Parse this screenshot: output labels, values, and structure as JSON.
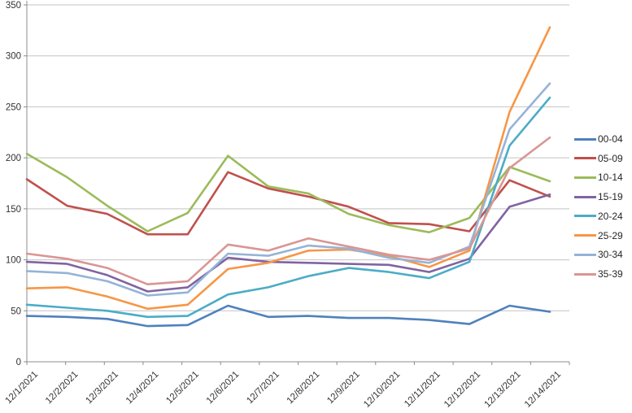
{
  "chart_data": {
    "type": "line",
    "title": "",
    "xlabel": "",
    "ylabel": "",
    "categories": [
      "12/1/2021",
      "12/2/2021",
      "12/3/2021",
      "12/4/2021",
      "12/5/2021",
      "12/6/2021",
      "12/7/2021",
      "12/8/2021",
      "12/9/2021",
      "12/10/2021",
      "12/11/2021",
      "12/12/2021",
      "12/13/2021",
      "12/14/2021"
    ],
    "series": [
      {
        "name": "00-04",
        "color": "#4F81BD",
        "values": [
          45,
          44,
          42,
          35,
          36,
          55,
          44,
          45,
          43,
          43,
          41,
          37,
          55,
          49
        ]
      },
      {
        "name": "05-09",
        "color": "#C0504D",
        "values": [
          179,
          153,
          145,
          125,
          125,
          186,
          170,
          162,
          152,
          136,
          135,
          128,
          178,
          162
        ]
      },
      {
        "name": "10-14",
        "color": "#9BBB59",
        "values": [
          204,
          181,
          153,
          128,
          146,
          202,
          172,
          165,
          145,
          134,
          127,
          141,
          191,
          177
        ]
      },
      {
        "name": "15-19",
        "color": "#8064A2",
        "values": [
          98,
          96,
          85,
          69,
          73,
          102,
          98,
          97,
          96,
          95,
          88,
          101,
          152,
          164
        ]
      },
      {
        "name": "20-24",
        "color": "#4BACC6",
        "values": [
          56,
          53,
          50,
          44,
          45,
          66,
          73,
          84,
          92,
          88,
          82,
          98,
          212,
          259
        ]
      },
      {
        "name": "25-29",
        "color": "#F79646",
        "values": [
          72,
          73,
          64,
          52,
          56,
          91,
          97,
          109,
          110,
          104,
          93,
          109,
          245,
          328
        ]
      },
      {
        "name": "30-34",
        "color": "#95B3D7",
        "values": [
          89,
          87,
          79,
          65,
          68,
          106,
          104,
          114,
          111,
          102,
          97,
          113,
          228,
          273
        ]
      },
      {
        "name": "35-39",
        "color": "#D99694",
        "values": [
          106,
          101,
          92,
          76,
          79,
          115,
          109,
          121,
          113,
          105,
          100,
          111,
          190,
          220
        ]
      }
    ],
    "ylim": [
      0,
      350
    ],
    "ytick_step": 50,
    "yticks": [
      "0",
      "50",
      "100",
      "150",
      "200",
      "250",
      "300",
      "350"
    ],
    "grid": true,
    "legend_position": "right"
  },
  "style": {
    "grid_color": "#C3C3C3",
    "axis_color": "#8C8C8C",
    "label_color": "#333333",
    "background": "#FFFFFF"
  }
}
